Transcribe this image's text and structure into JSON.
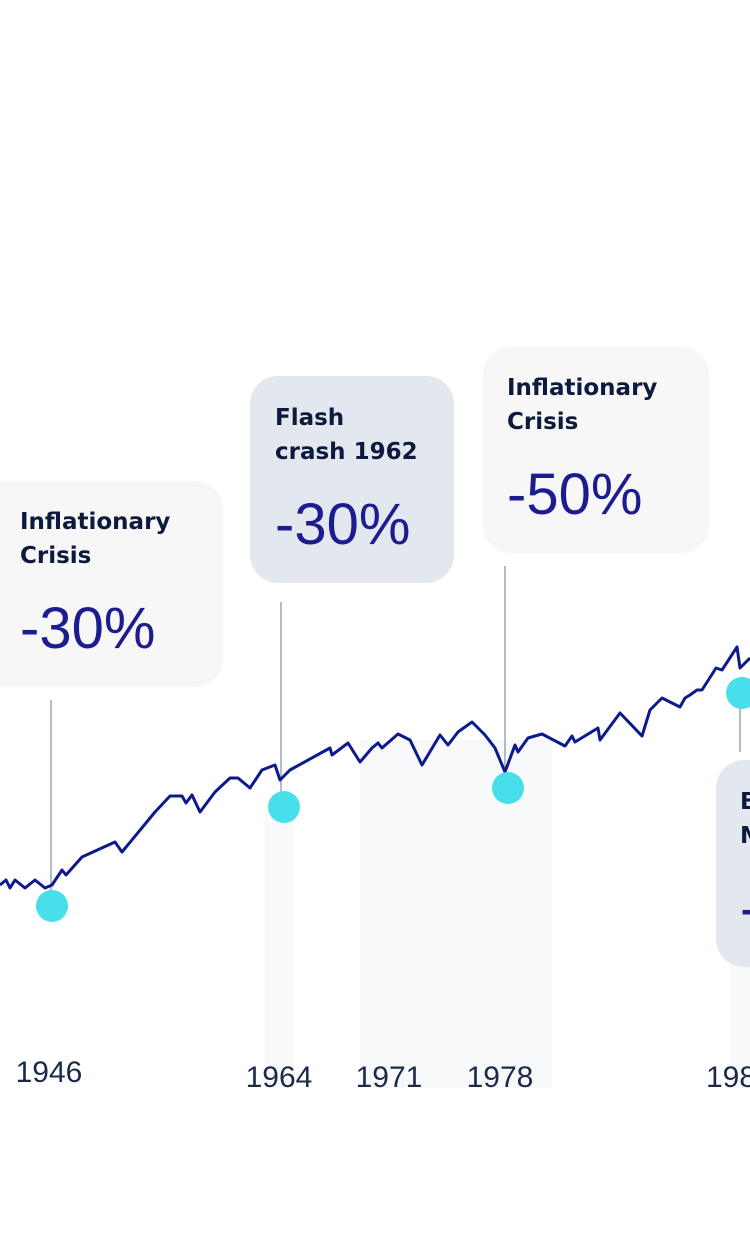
{
  "callouts": [
    {
      "title": [
        "Inflationary",
        "Crisis"
      ],
      "value": "-30%"
    },
    {
      "title": [
        "Flash",
        "crash 1962"
      ],
      "value": "-30%"
    },
    {
      "title": [
        "Inflationary",
        "Crisis"
      ],
      "value": "-50%"
    },
    {
      "title": [
        "B",
        "M"
      ],
      "value": "-"
    }
  ],
  "axis_labels": [
    "1946",
    "1964",
    "1971",
    "1978",
    "198"
  ]
}
